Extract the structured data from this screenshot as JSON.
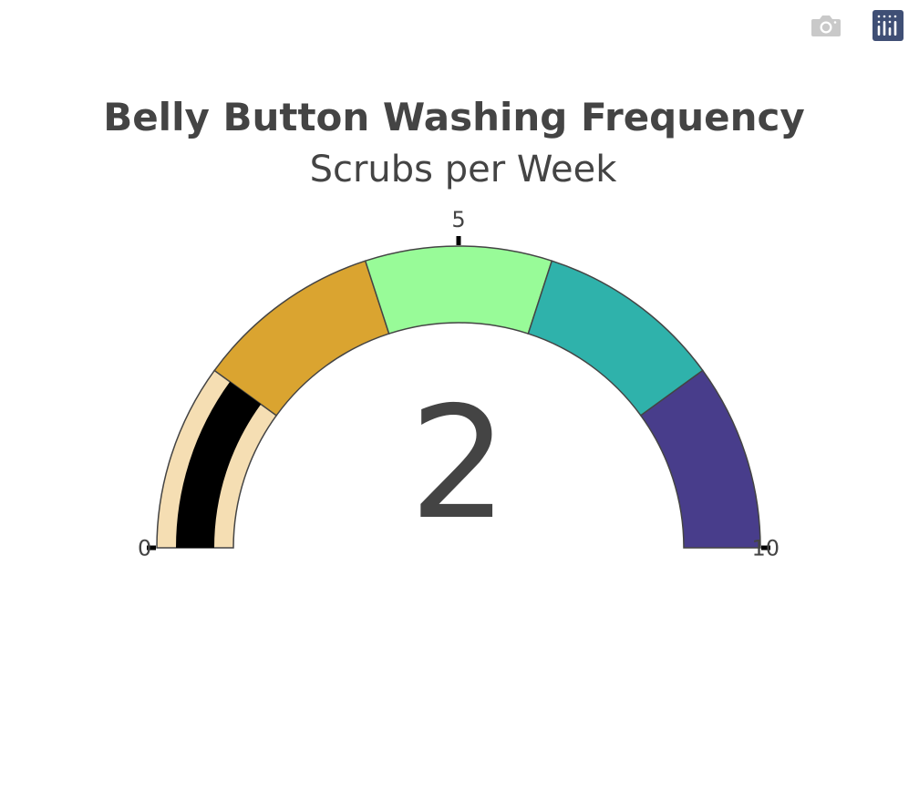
{
  "modebar": {
    "buttons": [
      {
        "name": "camera-icon",
        "label": "Download plot as a png"
      },
      {
        "name": "plotly-logo-icon",
        "label": "Produced with Plotly"
      }
    ]
  },
  "chart_data": {
    "type": "gauge",
    "title": "Belly Button Washing Frequency",
    "subtitle": "Scrubs per Week",
    "value": 2,
    "value_label": "2",
    "range": [
      0,
      10
    ],
    "ticks": [
      {
        "value": 0,
        "label": "0"
      },
      {
        "value": 5,
        "label": "5"
      },
      {
        "value": 10,
        "label": "10"
      }
    ],
    "bar": {
      "value": 2,
      "color": "#000000"
    },
    "steps": [
      {
        "range": [
          0,
          2
        ],
        "color": "#f5deb3"
      },
      {
        "range": [
          2,
          4
        ],
        "color": "#daa430"
      },
      {
        "range": [
          4,
          6
        ],
        "color": "#98fb98"
      },
      {
        "range": [
          6,
          8
        ],
        "color": "#2fb2ab"
      },
      {
        "range": [
          8,
          10
        ],
        "color": "#483d8b"
      }
    ],
    "border_color": "#444444",
    "text_color": "#444444"
  }
}
